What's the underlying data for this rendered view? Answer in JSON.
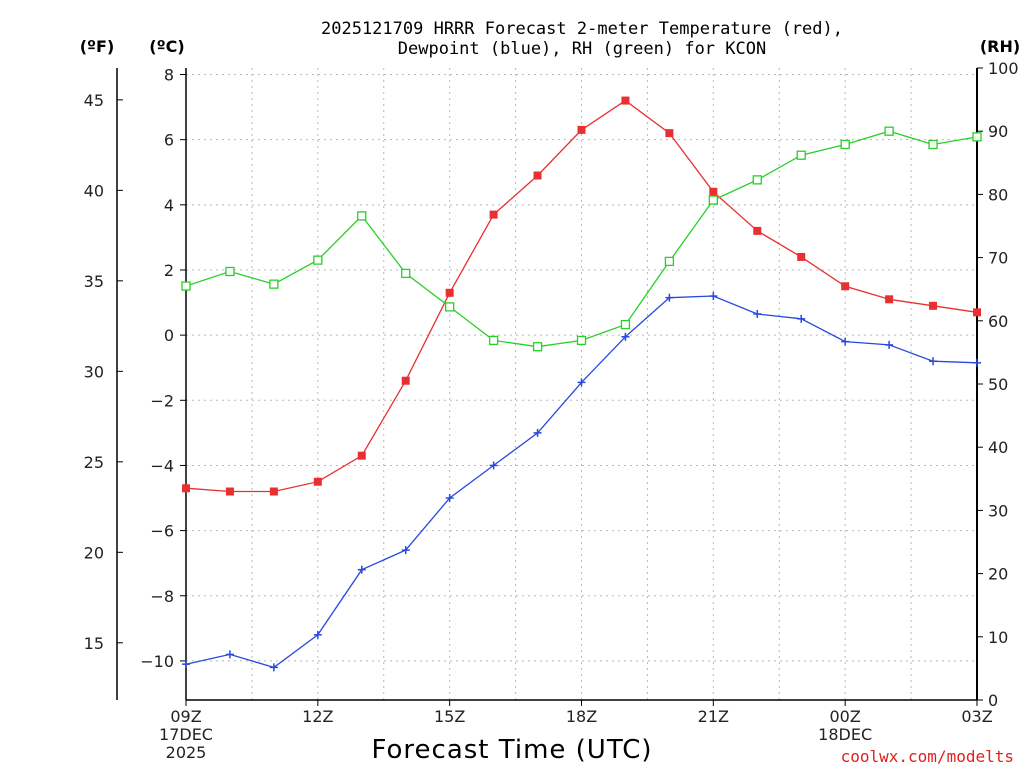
{
  "chart_data": {
    "type": "line",
    "title_lines": [
      "2025121709 HRRR Forecast 2-meter Temperature (red),",
      "Dewpoint (blue), RH (green) for KCON"
    ],
    "units": {
      "fahrenheit": "(ºF)",
      "celsius": "(ºC)",
      "rh": "(RH)"
    },
    "xlabel": "Forecast Time (UTC)",
    "credit": "coolwx.com/modelts",
    "x_hours": [
      9,
      10,
      11,
      12,
      13,
      14,
      15,
      16,
      17,
      18,
      19,
      20,
      21,
      22,
      23,
      24,
      25,
      26,
      27
    ],
    "x_ticks": [
      {
        "hour": 9,
        "lines": [
          "09Z",
          "17DEC",
          "2025"
        ]
      },
      {
        "hour": 12,
        "lines": [
          "12Z"
        ]
      },
      {
        "hour": 15,
        "lines": [
          "15Z"
        ]
      },
      {
        "hour": 18,
        "lines": [
          "18Z"
        ]
      },
      {
        "hour": 21,
        "lines": [
          "21Z"
        ]
      },
      {
        "hour": 24,
        "lines": [
          "00Z",
          "18DEC"
        ]
      },
      {
        "hour": 27,
        "lines": [
          "03Z"
        ]
      }
    ],
    "celsius_axis": {
      "range": [
        -11.2,
        8.2
      ],
      "ticks": [
        -10,
        -8,
        -6,
        -4,
        -2,
        0,
        2,
        4,
        6,
        8
      ]
    },
    "fahrenheit_axis": {
      "ticks": [
        15,
        20,
        25,
        30,
        35,
        40,
        45
      ]
    },
    "rh_axis": {
      "range": [
        0,
        100
      ],
      "ticks": [
        0,
        10,
        20,
        30,
        40,
        50,
        60,
        70,
        80,
        90,
        100
      ]
    },
    "series": [
      {
        "name": "Temperature (°C)",
        "color": "#e83030",
        "axis": "celsius",
        "marker": "filled-square",
        "values": [
          -4.7,
          -4.8,
          -4.8,
          -4.5,
          -3.7,
          -1.4,
          1.3,
          3.7,
          4.9,
          6.3,
          7.2,
          6.2,
          4.4,
          3.2,
          2.4,
          1.5,
          1.1,
          0.9,
          0.7
        ]
      },
      {
        "name": "Dewpoint (°C)",
        "color": "#2848e0",
        "axis": "celsius",
        "marker": "plus",
        "values": [
          -10.1,
          -9.8,
          -10.2,
          -9.2,
          -7.2,
          -6.6,
          -5.0,
          -4.0,
          -3.0,
          -1.45,
          -0.05,
          1.15,
          1.2,
          0.65,
          0.5,
          -0.2,
          -0.3,
          -0.8,
          -0.85
        ]
      },
      {
        "name": "Relative Humidity (%)",
        "color": "#28d028",
        "axis": "rh",
        "marker": "open-square",
        "values": [
          65.5,
          67.8,
          65.8,
          69.6,
          76.6,
          67.5,
          62.2,
          56.9,
          55.9,
          56.9,
          59.4,
          69.4,
          79.1,
          82.3,
          86.2,
          87.9,
          90.0,
          87.9,
          89.1
        ]
      }
    ]
  }
}
